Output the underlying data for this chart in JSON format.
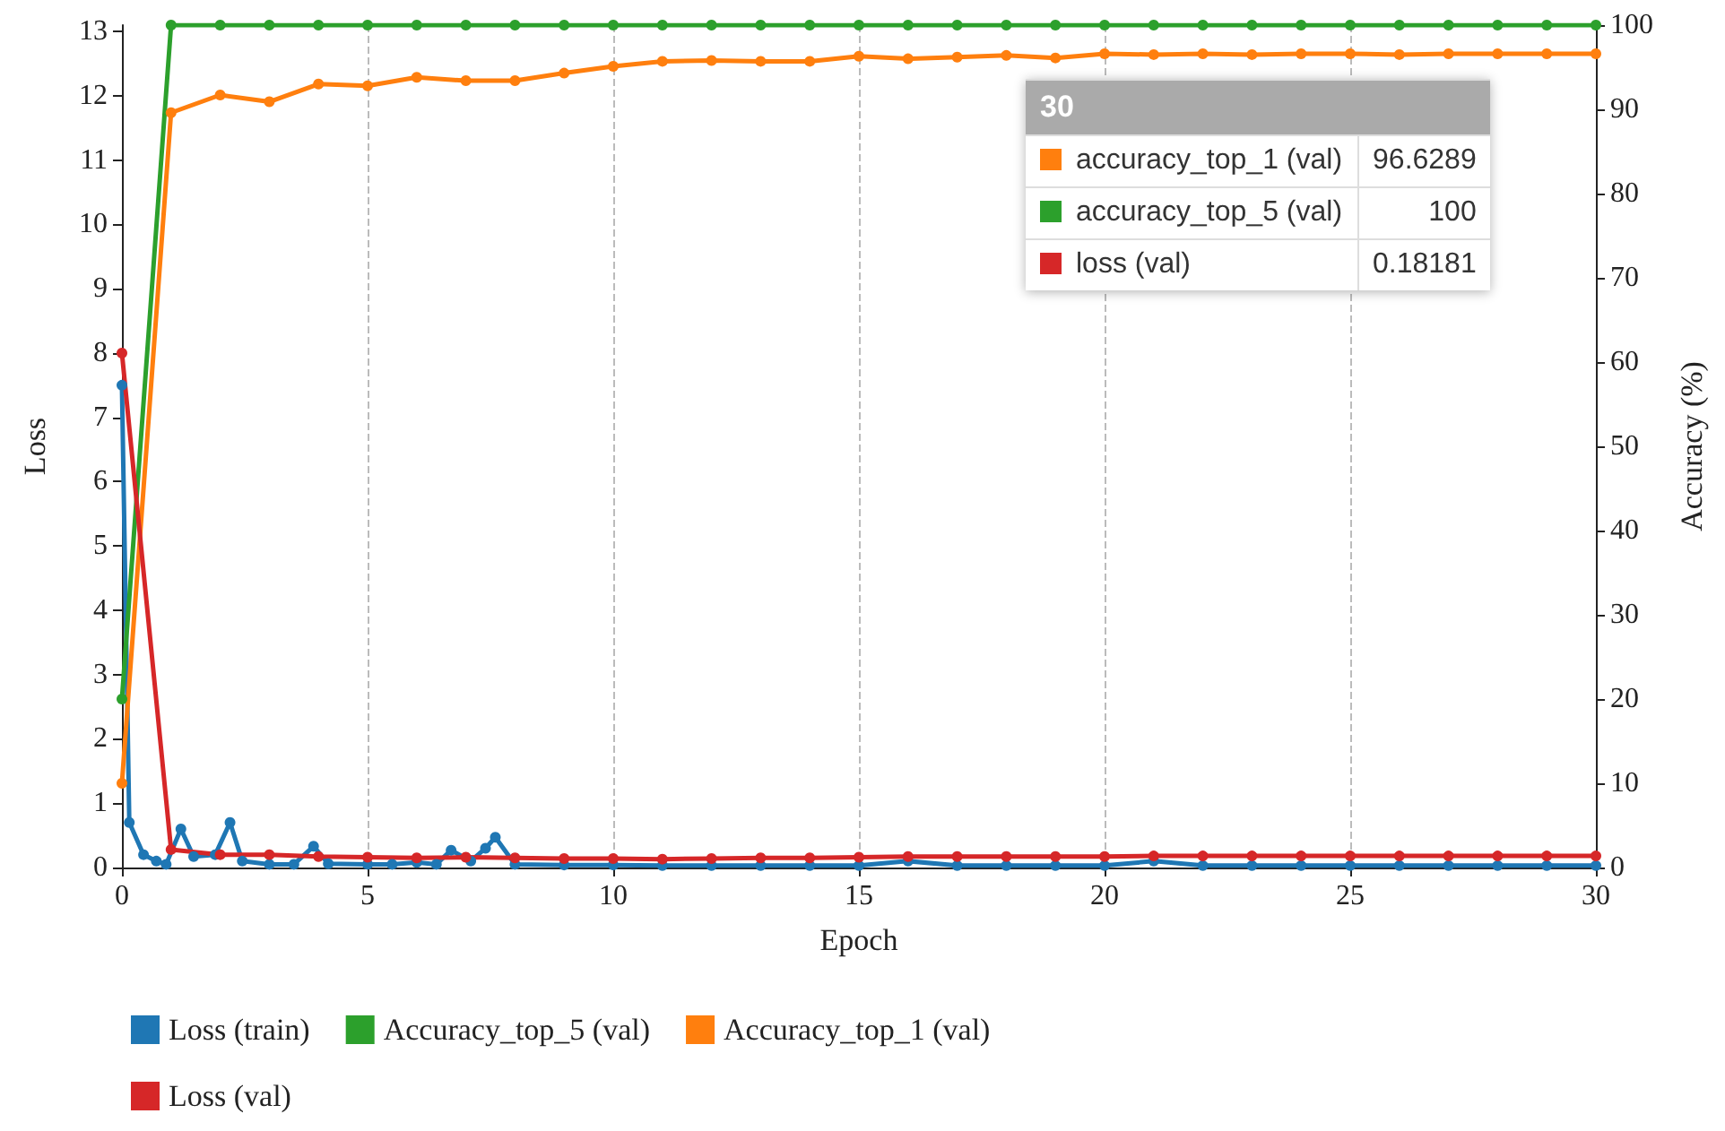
{
  "chart_data": {
    "type": "line",
    "xlabel": "Epoch",
    "ylabel": "Loss",
    "y2label": "Accuracy (%)",
    "x": [
      0,
      1,
      2,
      3,
      4,
      5,
      6,
      7,
      8,
      9,
      10,
      11,
      12,
      13,
      14,
      15,
      16,
      17,
      18,
      19,
      20,
      21,
      22,
      23,
      24,
      25,
      26,
      27,
      28,
      29,
      30
    ],
    "xlim": [
      0,
      30
    ],
    "xticks": [
      0,
      5,
      10,
      15,
      20,
      25,
      30
    ],
    "ylim": [
      0,
      13.1
    ],
    "yticks": [
      0,
      1,
      2,
      3,
      4,
      5,
      6,
      7,
      8,
      9,
      10,
      11,
      12,
      13
    ],
    "y2lim": [
      0,
      100
    ],
    "y2ticks": [
      0,
      10,
      20,
      30,
      40,
      50,
      60,
      70,
      80,
      90,
      100
    ],
    "series": [
      {
        "name": "Loss (train)",
        "color": "#1f77b4",
        "x": [
          0,
          0.15,
          0.44,
          0.7,
          0.9,
          1.2,
          1.46,
          1.9,
          2.2,
          2.45,
          3,
          3.5,
          3.9,
          4.2,
          5,
          5.5,
          6,
          6.4,
          6.7,
          7.1,
          7.4,
          7.6,
          8,
          9,
          10,
          11,
          12,
          13,
          14,
          15,
          16,
          17,
          18,
          19,
          20,
          21,
          22,
          23,
          24,
          25,
          26,
          27,
          28,
          29,
          30
        ],
        "values": [
          7.5,
          0.7,
          0.2,
          0.1,
          0.05,
          0.6,
          0.17,
          0.2,
          0.7,
          0.1,
          0.05,
          0.05,
          0.33,
          0.06,
          0.05,
          0.05,
          0.08,
          0.05,
          0.27,
          0.1,
          0.3,
          0.47,
          0.05,
          0.04,
          0.04,
          0.03,
          0.03,
          0.03,
          0.03,
          0.03,
          0.1,
          0.03,
          0.03,
          0.03,
          0.03,
          0.1,
          0.03,
          0.03,
          0.03,
          0.03,
          0.03,
          0.03,
          0.03,
          0.03,
          0.03
        ]
      },
      {
        "name": "Accuracy_top_5 (val)",
        "color": "#2ca02c",
        "axis": "y2",
        "values": [
          20,
          100,
          100,
          100,
          100,
          100,
          100,
          100,
          100,
          100,
          100,
          100,
          100,
          100,
          100,
          100,
          100,
          100,
          100,
          100,
          100,
          100,
          100,
          100,
          100,
          100,
          100,
          100,
          100,
          100,
          100
        ]
      },
      {
        "name": "Accuracy_top_1 (val)",
        "color": "#ff7f0e",
        "axis": "y2",
        "values": [
          10,
          89.6,
          91.7,
          90.9,
          93,
          92.8,
          93.8,
          93.4,
          93.4,
          94.3,
          95.1,
          95.7,
          95.8,
          95.7,
          95.7,
          96.3,
          96,
          96.2,
          96.4,
          96.1,
          96.6,
          96.5,
          96.6,
          96.5,
          96.6,
          96.6,
          96.5,
          96.6,
          96.6,
          96.6,
          96.6
        ]
      },
      {
        "name": "Loss (val)",
        "color": "#d62728",
        "values": [
          8.0,
          0.28,
          0.2,
          0.2,
          0.17,
          0.16,
          0.15,
          0.16,
          0.15,
          0.14,
          0.14,
          0.13,
          0.14,
          0.15,
          0.15,
          0.16,
          0.17,
          0.17,
          0.17,
          0.17,
          0.17,
          0.18,
          0.18,
          0.18,
          0.18,
          0.18,
          0.18,
          0.18,
          0.18,
          0.18,
          0.18
        ]
      }
    ],
    "grid": "x",
    "legend": "bottom",
    "marker": "circle",
    "line_style": "solid",
    "annotations": [
      "30",
      "accuracy_top_1 (val)",
      "96.6289",
      "accuracy_top_5 (val)",
      "100",
      "loss (val)",
      "0.18181"
    ]
  }
}
